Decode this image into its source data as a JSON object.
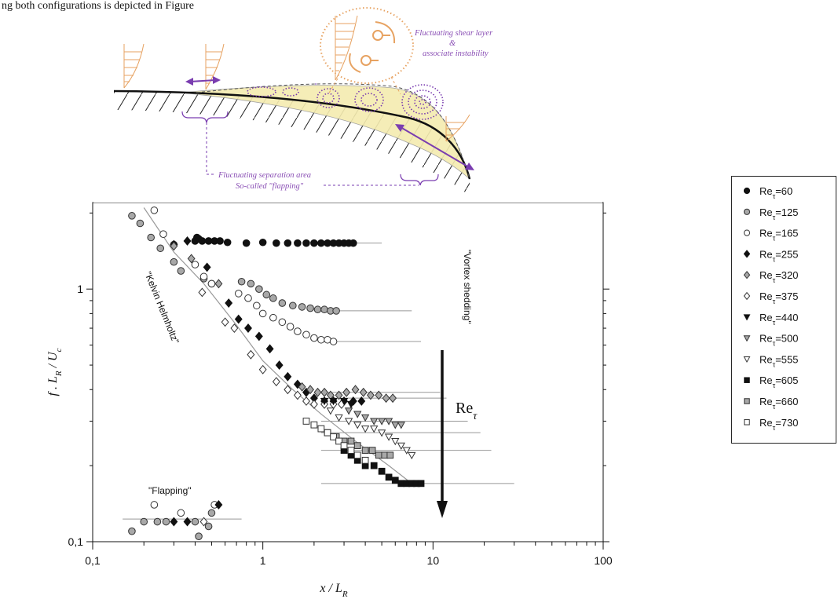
{
  "caption": "ng both configurations is depicted in Figure",
  "schematic": {
    "label_shear_1": "Fluctuating shear layer",
    "label_shear_2": "&",
    "label_shear_3": "associate instability",
    "label_flap_1": "Fluctuating separation area",
    "label_flap_2": "So-called \"flapping\""
  },
  "colors": {
    "purple": "#8a4fb5",
    "orange": "#e7a261",
    "yellow_fill": "#f5ecb0",
    "gray_marker": "#a8a8a8"
  },
  "chart_data": {
    "type": "scatter",
    "xscale": "log",
    "yscale": "log",
    "xlim": [
      0.1,
      100
    ],
    "ylim": [
      0.1,
      2.2
    ],
    "x_ticks": [
      "0,1",
      "1",
      "10",
      "100"
    ],
    "y_ticks": [
      "0,1",
      "1"
    ],
    "xlabel": "x / L_R",
    "ylabel": "f . L_R / U_c",
    "annotations": {
      "kh": "\"Kelvin Helmholtz\"",
      "vortex": "\"Vortex shedding\"",
      "flapping": "\"Flapping\"",
      "arrow": "Re_τ"
    },
    "series": [
      {
        "name": "Re_τ=60",
        "marker": "circle",
        "fill": "black",
        "points": [
          [
            0.4,
            1.55
          ],
          [
            0.41,
            1.6
          ],
          [
            0.42,
            1.58
          ],
          [
            0.44,
            1.55
          ],
          [
            0.48,
            1.55
          ],
          [
            0.52,
            1.55
          ],
          [
            0.56,
            1.55
          ],
          [
            0.62,
            1.53
          ],
          [
            0.8,
            1.52
          ],
          [
            1.0,
            1.53
          ],
          [
            1.2,
            1.52
          ],
          [
            1.4,
            1.52
          ],
          [
            1.6,
            1.52
          ],
          [
            1.8,
            1.52
          ],
          [
            2.0,
            1.52
          ],
          [
            2.2,
            1.52
          ],
          [
            2.4,
            1.52
          ],
          [
            2.6,
            1.52
          ],
          [
            2.8,
            1.52
          ],
          [
            3.0,
            1.52
          ],
          [
            3.2,
            1.52
          ],
          [
            3.4,
            1.52
          ]
        ]
      },
      {
        "name": "Re_τ=125",
        "marker": "circle",
        "fill": "gray",
        "points": [
          [
            0.17,
            1.95
          ],
          [
            0.19,
            1.82
          ],
          [
            0.22,
            1.6
          ],
          [
            0.25,
            1.45
          ],
          [
            0.3,
            1.28
          ],
          [
            0.33,
            1.18
          ],
          [
            0.45,
            1.1
          ],
          [
            0.5,
            1.05
          ],
          [
            0.75,
            1.07
          ],
          [
            0.85,
            1.05
          ],
          [
            0.95,
            1.0
          ],
          [
            1.05,
            0.95
          ],
          [
            1.15,
            0.92
          ],
          [
            1.3,
            0.88
          ],
          [
            1.5,
            0.86
          ],
          [
            1.7,
            0.85
          ],
          [
            1.9,
            0.84
          ],
          [
            2.1,
            0.83
          ],
          [
            2.3,
            0.83
          ],
          [
            2.5,
            0.82
          ],
          [
            2.7,
            0.82
          ]
        ]
      },
      {
        "name": "Re_τ=165",
        "marker": "circle",
        "fill": "white",
        "points": [
          [
            0.23,
            2.05
          ],
          [
            0.26,
            1.65
          ],
          [
            0.3,
            1.5
          ],
          [
            0.4,
            1.25
          ],
          [
            0.45,
            1.12
          ],
          [
            0.5,
            1.05
          ],
          [
            0.72,
            0.96
          ],
          [
            0.82,
            0.92
          ],
          [
            0.92,
            0.86
          ],
          [
            1.0,
            0.8
          ],
          [
            1.15,
            0.77
          ],
          [
            1.3,
            0.74
          ],
          [
            1.45,
            0.71
          ],
          [
            1.6,
            0.68
          ],
          [
            1.8,
            0.66
          ],
          [
            2.0,
            0.64
          ],
          [
            2.2,
            0.63
          ],
          [
            2.4,
            0.63
          ],
          [
            2.6,
            0.62
          ]
        ]
      },
      {
        "name": "Re_τ=255",
        "marker": "diamond",
        "fill": "black",
        "points": [
          [
            0.3,
            1.5
          ],
          [
            0.36,
            1.55
          ],
          [
            0.47,
            1.22
          ],
          [
            0.63,
            0.88
          ],
          [
            0.72,
            0.76
          ],
          [
            0.82,
            0.7
          ],
          [
            0.95,
            0.65
          ],
          [
            1.1,
            0.58
          ],
          [
            1.25,
            0.5
          ],
          [
            1.4,
            0.45
          ],
          [
            1.6,
            0.42
          ],
          [
            1.8,
            0.39
          ],
          [
            2.0,
            0.37
          ],
          [
            2.3,
            0.36
          ],
          [
            2.6,
            0.36
          ],
          [
            3.0,
            0.36
          ],
          [
            3.4,
            0.36
          ],
          [
            3.8,
            0.36
          ]
        ]
      },
      {
        "name": "Re_τ=320",
        "marker": "diamond",
        "fill": "gray",
        "points": [
          [
            0.3,
            1.48
          ],
          [
            0.38,
            1.32
          ],
          [
            0.55,
            1.05
          ],
          [
            1.7,
            0.41
          ],
          [
            1.9,
            0.4
          ],
          [
            2.1,
            0.39
          ],
          [
            2.3,
            0.39
          ],
          [
            2.5,
            0.38
          ],
          [
            2.8,
            0.38
          ],
          [
            3.1,
            0.39
          ],
          [
            3.5,
            0.4
          ],
          [
            3.9,
            0.39
          ],
          [
            4.3,
            0.38
          ],
          [
            4.8,
            0.38
          ],
          [
            5.3,
            0.37
          ],
          [
            5.8,
            0.37
          ]
        ]
      },
      {
        "name": "Re_τ=375",
        "marker": "diamond",
        "fill": "white",
        "points": [
          [
            0.44,
            0.97
          ],
          [
            0.6,
            0.74
          ],
          [
            0.68,
            0.7
          ],
          [
            0.85,
            0.55
          ],
          [
            1.0,
            0.48
          ],
          [
            1.2,
            0.43
          ],
          [
            1.4,
            0.4
          ],
          [
            1.6,
            0.38
          ],
          [
            1.8,
            0.36
          ],
          [
            2.0,
            0.35
          ],
          [
            2.3,
            0.35
          ],
          [
            2.6,
            0.35
          ],
          [
            2.9,
            0.35
          ]
        ]
      },
      {
        "name": "Re_τ=440",
        "marker": "triangle",
        "fill": "black",
        "points": [
          [
            2.3,
            0.36
          ],
          [
            2.6,
            0.36
          ],
          [
            3.0,
            0.36
          ],
          [
            3.3,
            0.35
          ]
        ]
      },
      {
        "name": "Re_τ=500",
        "marker": "triangle",
        "fill": "gray",
        "points": [
          [
            3.2,
            0.33
          ],
          [
            3.6,
            0.32
          ],
          [
            4.0,
            0.31
          ],
          [
            4.5,
            0.3
          ],
          [
            5.0,
            0.3
          ],
          [
            5.5,
            0.3
          ],
          [
            6.0,
            0.29
          ],
          [
            6.5,
            0.29
          ]
        ]
      },
      {
        "name": "Re_τ=555",
        "marker": "triangle",
        "fill": "white",
        "points": [
          [
            2.5,
            0.33
          ],
          [
            2.8,
            0.31
          ],
          [
            3.2,
            0.3
          ],
          [
            3.6,
            0.29
          ],
          [
            4.0,
            0.28
          ],
          [
            4.5,
            0.28
          ],
          [
            5.0,
            0.27
          ],
          [
            5.5,
            0.26
          ],
          [
            6.0,
            0.25
          ],
          [
            6.5,
            0.24
          ],
          [
            7.0,
            0.23
          ],
          [
            7.5,
            0.22
          ]
        ]
      },
      {
        "name": "Re_τ=605",
        "marker": "square",
        "fill": "black",
        "points": [
          [
            3.0,
            0.23
          ],
          [
            3.3,
            0.22
          ],
          [
            3.6,
            0.21
          ],
          [
            4.0,
            0.2
          ],
          [
            4.5,
            0.2
          ],
          [
            5.0,
            0.19
          ],
          [
            5.5,
            0.18
          ],
          [
            6.0,
            0.175
          ],
          [
            6.5,
            0.17
          ],
          [
            7.0,
            0.17
          ],
          [
            7.5,
            0.17
          ],
          [
            8.0,
            0.17
          ],
          [
            8.5,
            0.17
          ]
        ]
      },
      {
        "name": "Re_τ=660",
        "marker": "square",
        "fill": "gray",
        "points": [
          [
            2.4,
            0.27
          ],
          [
            2.7,
            0.26
          ],
          [
            3.0,
            0.25
          ],
          [
            3.3,
            0.25
          ],
          [
            3.6,
            0.24
          ],
          [
            4.0,
            0.23
          ],
          [
            4.4,
            0.23
          ],
          [
            4.8,
            0.22
          ],
          [
            5.2,
            0.22
          ],
          [
            5.6,
            0.22
          ]
        ]
      },
      {
        "name": "Re_τ=730",
        "marker": "square",
        "fill": "white",
        "points": [
          [
            1.8,
            0.3
          ],
          [
            2.0,
            0.29
          ],
          [
            2.2,
            0.28
          ],
          [
            2.4,
            0.27
          ],
          [
            2.6,
            0.26
          ],
          [
            2.8,
            0.25
          ],
          [
            3.0,
            0.24
          ],
          [
            3.3,
            0.23
          ],
          [
            3.6,
            0.22
          ],
          [
            4.0,
            0.21
          ]
        ]
      },
      {
        "name": "flapping-group",
        "marker": "mixed",
        "fill": "mixed",
        "points": [
          [
            0.17,
            0.11
          ],
          [
            0.2,
            0.12
          ],
          [
            0.23,
            0.14
          ],
          [
            0.24,
            0.12
          ],
          [
            0.27,
            0.12
          ],
          [
            0.3,
            0.12
          ],
          [
            0.33,
            0.13
          ],
          [
            0.36,
            0.12
          ],
          [
            0.4,
            0.12
          ],
          [
            0.42,
            0.105
          ],
          [
            0.45,
            0.12
          ],
          [
            0.48,
            0.115
          ],
          [
            0.5,
            0.13
          ],
          [
            0.52,
            0.14
          ],
          [
            0.55,
            0.14
          ]
        ]
      }
    ],
    "kh_curve": [
      [
        0.2,
        2.1
      ],
      [
        0.3,
        1.4
      ],
      [
        0.45,
        1.05
      ],
      [
        0.7,
        0.72
      ],
      [
        1.0,
        0.52
      ],
      [
        1.5,
        0.4
      ],
      [
        2.2,
        0.32
      ],
      [
        3.5,
        0.25
      ],
      [
        5.5,
        0.2
      ],
      [
        7.5,
        0.17
      ]
    ],
    "levels": [
      {
        "x_end": 5.0,
        "y": 1.52
      },
      {
        "x_end": 7.5,
        "y": 0.82
      },
      {
        "x_end": 8.5,
        "y": 0.62
      },
      {
        "x_end": 11.0,
        "y": 0.39
      },
      {
        "x_end": 12.0,
        "y": 0.37
      },
      {
        "x_end": 16.0,
        "y": 0.3
      },
      {
        "x_end": 19.0,
        "y": 0.27
      },
      {
        "x_end": 22.0,
        "y": 0.23
      },
      {
        "x_end": 30.0,
        "y": 0.17
      }
    ],
    "flapping_level": {
      "x_start": 0.15,
      "x_end": 0.75,
      "y": 0.123
    },
    "legend": {
      "placement": "right",
      "entries": [
        {
          "label": "Re",
          "sub": "τ",
          "rest": "=60",
          "marker": "circle",
          "fill": "black"
        },
        {
          "label": "Re",
          "sub": "τ",
          "rest": "=125",
          "marker": "circle",
          "fill": "gray"
        },
        {
          "label": "Re",
          "sub": "τ",
          "rest": "=165",
          "marker": "circle",
          "fill": "white"
        },
        {
          "label": "Re",
          "sub": "τ",
          "rest": "=255",
          "marker": "diamond",
          "fill": "black"
        },
        {
          "label": "Re",
          "sub": "τ",
          "rest": "=320",
          "marker": "diamond",
          "fill": "gray"
        },
        {
          "label": "Re",
          "sub": "τ",
          "rest": "=375",
          "marker": "diamond",
          "fill": "white"
        },
        {
          "label": "Re",
          "sub": "τ",
          "rest": "=440",
          "marker": "triangle",
          "fill": "black"
        },
        {
          "label": "Re",
          "sub": "τ",
          "rest": "=500",
          "marker": "triangle",
          "fill": "gray"
        },
        {
          "label": "Re",
          "sub": "τ",
          "rest": "=555",
          "marker": "triangle",
          "fill": "white"
        },
        {
          "label": "Re",
          "sub": "τ",
          "rest": "=605",
          "marker": "square",
          "fill": "black"
        },
        {
          "label": "Re",
          "sub": "τ",
          "rest": "=660",
          "marker": "square",
          "fill": "gray"
        },
        {
          "label": "Re",
          "sub": "τ",
          "rest": "=730",
          "marker": "square",
          "fill": "white"
        }
      ]
    }
  }
}
